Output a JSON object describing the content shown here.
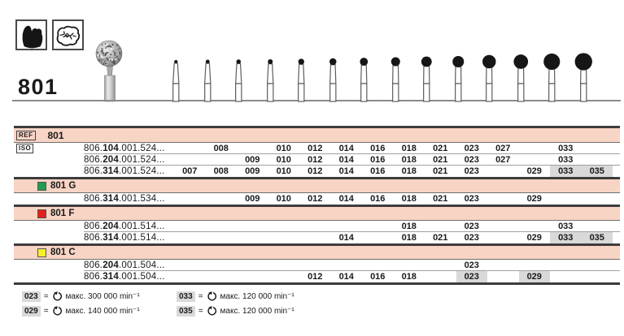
{
  "header": {
    "figure_number": "801",
    "indication_icons": [
      "crown-preparation-icon",
      "occlusal-surface-icon"
    ]
  },
  "silhouettes": {
    "ball_diameters_mm": [
      0.7,
      0.8,
      0.9,
      1.0,
      1.2,
      1.4,
      1.6,
      1.8,
      2.1,
      2.3,
      2.7,
      2.9,
      3.3,
      3.5
    ]
  },
  "table": {
    "ref_label": "REF",
    "iso_label": "ISO",
    "ref_value": "801",
    "size_columns": [
      "007",
      "008",
      "009",
      "010",
      "012",
      "014",
      "016",
      "018",
      "021",
      "023",
      "027",
      "029",
      "033",
      "035"
    ],
    "groups": [
      {
        "type": "ref",
        "label": "801",
        "swatch": null,
        "rows": [
          {
            "iso_pre": "806.",
            "iso_bold": "104",
            "iso_post": ".001.524...",
            "sizes": [
              "008",
              "010",
              "012",
              "014",
              "016",
              "018",
              "021",
              "023",
              "027",
              "033"
            ],
            "gray": []
          },
          {
            "iso_pre": "806.",
            "iso_bold": "204",
            "iso_post": ".001.524...",
            "sizes": [
              "009",
              "010",
              "012",
              "014",
              "016",
              "018",
              "021",
              "023",
              "027",
              "033"
            ],
            "gray": []
          },
          {
            "iso_pre": "806.",
            "iso_bold": "314",
            "iso_post": ".001.524...",
            "sizes": [
              "007",
              "008",
              "009",
              "010",
              "012",
              "014",
              "016",
              "018",
              "021",
              "023",
              "029",
              "033",
              "035"
            ],
            "gray": [
              "033",
              "035"
            ]
          }
        ]
      },
      {
        "type": "group",
        "label": "801 G",
        "swatch": "#1f9e4f",
        "rows": [
          {
            "iso_pre": "806.",
            "iso_bold": "314",
            "iso_post": ".001.534...",
            "sizes": [
              "009",
              "010",
              "012",
              "014",
              "016",
              "018",
              "021",
              "023",
              "029"
            ],
            "gray": []
          }
        ]
      },
      {
        "type": "group",
        "label": "801 F",
        "swatch": "#e32019",
        "rows": [
          {
            "iso_pre": "806.",
            "iso_bold": "204",
            "iso_post": ".001.514...",
            "sizes": [
              "018",
              "023",
              "033"
            ],
            "gray": []
          },
          {
            "iso_pre": "806.",
            "iso_bold": "314",
            "iso_post": ".001.514...",
            "sizes": [
              "014",
              "018",
              "021",
              "023",
              "029",
              "033",
              "035"
            ],
            "gray": [
              "033",
              "035"
            ]
          }
        ]
      },
      {
        "type": "group",
        "label": "801 C",
        "swatch": "#f6ee2c",
        "rows": [
          {
            "iso_pre": "806.",
            "iso_bold": "204",
            "iso_post": ".001.504...",
            "sizes": [
              "023"
            ],
            "gray": []
          },
          {
            "iso_pre": "806.",
            "iso_bold": "314",
            "iso_post": ".001.504...",
            "sizes": [
              "012",
              "014",
              "016",
              "018",
              "023",
              "029"
            ],
            "gray": [
              "023",
              "029"
            ]
          }
        ]
      }
    ]
  },
  "legend": {
    "separator": "=",
    "entries": [
      {
        "key": "023",
        "text": "макс. 300 000 min⁻¹",
        "column": 0
      },
      {
        "key": "029",
        "text": "макс. 140 000 min⁻¹",
        "column": 0
      },
      {
        "key": "033",
        "text": "макс. 120 000 min⁻¹",
        "column": 1
      },
      {
        "key": "035",
        "text": "макс. 120 000 min⁻¹",
        "column": 1
      }
    ]
  },
  "colors": {
    "band_pink": "#f8d4c5",
    "cell_gray": "#d9d9d9",
    "rule_dark": "#3c3c3c",
    "rule_light": "#a0a0a0"
  }
}
